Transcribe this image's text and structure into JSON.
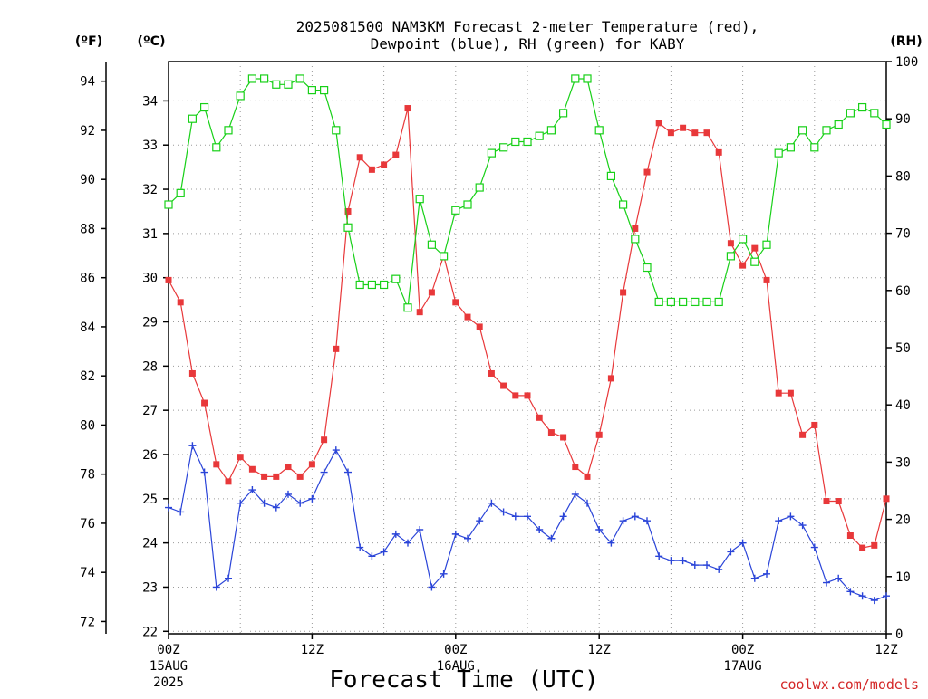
{
  "chart_data": {
    "type": "line",
    "title_line1": "2025081500 NAM3KM Forecast 2-meter Temperature (red),",
    "title_line2": "Dewpoint (blue), RH (green) for KABY",
    "xlabel": "Forecast Time (UTC)",
    "credit": "coolwx.com/models",
    "unit_f": "(ºF)",
    "unit_c": "(ºC)",
    "unit_rh": "(RH)",
    "x_range_hours": [
      0,
      60
    ],
    "x_ticks": [
      {
        "hour": 0,
        "label": "00Z",
        "sub1": "15AUG",
        "sub2": "2025"
      },
      {
        "hour": 12,
        "label": "12Z",
        "sub1": "",
        "sub2": ""
      },
      {
        "hour": 24,
        "label": "00Z",
        "sub1": "16AUG",
        "sub2": ""
      },
      {
        "hour": 36,
        "label": "12Z",
        "sub1": "",
        "sub2": ""
      },
      {
        "hour": 48,
        "label": "00Z",
        "sub1": "17AUG",
        "sub2": ""
      },
      {
        "hour": 60,
        "label": "12Z",
        "sub1": "",
        "sub2": ""
      }
    ],
    "f_ticks": [
      "72",
      "74",
      "76",
      "78",
      "80",
      "82",
      "84",
      "86",
      "88",
      "90",
      "92",
      "94"
    ],
    "c_ticks": [
      "22",
      "23",
      "24",
      "25",
      "26",
      "27",
      "28",
      "29",
      "30",
      "31",
      "32",
      "33",
      "34"
    ],
    "rh_ticks": [
      "0",
      "10",
      "20",
      "30",
      "40",
      "50",
      "60",
      "70",
      "80",
      "90",
      "100"
    ],
    "f_range": [
      71.5,
      94.8
    ],
    "rh_range": [
      0,
      100
    ],
    "grid": true,
    "colors": {
      "temperature": "#e8383a",
      "dewpoint": "#2a44d8",
      "rh": "#18d018",
      "grid": "#9a9a9a",
      "credit": "#d42828"
    },
    "series": [
      {
        "key": "temperature",
        "marker": "filled-square",
        "x": [
          0,
          1,
          2,
          3,
          4,
          5,
          6,
          7,
          8,
          9,
          10,
          11,
          12,
          13,
          14,
          15,
          16,
          17,
          18,
          19,
          20,
          21,
          22,
          23,
          24,
          25,
          26,
          27,
          28,
          29,
          30,
          31,
          32,
          33,
          34,
          35,
          36,
          37,
          38,
          39,
          40,
          41,
          42,
          43,
          44,
          45,
          46,
          47,
          48,
          49,
          50,
          51,
          52,
          53,
          54,
          55,
          56,
          57,
          58,
          59,
          60
        ],
        "values": [
          85.9,
          85.0,
          82.1,
          80.9,
          78.4,
          77.7,
          78.7,
          78.2,
          77.9,
          77.9,
          78.3,
          77.9,
          78.4,
          79.4,
          83.1,
          88.7,
          90.9,
          90.4,
          90.6,
          91.0,
          92.9,
          84.6,
          85.4,
          86.9,
          85.0,
          84.4,
          84.0,
          82.1,
          81.6,
          81.2,
          81.2,
          80.3,
          79.7,
          79.5,
          78.3,
          77.9,
          79.6,
          81.9,
          85.4,
          88.0,
          90.3,
          92.3,
          91.9,
          92.1,
          91.9,
          91.9,
          91.1,
          87.4,
          86.5,
          87.2,
          85.9,
          81.3,
          81.3,
          79.6,
          80.0,
          76.9,
          76.9,
          75.5,
          75.0,
          75.1,
          77.0
        ]
      },
      {
        "key": "dewpoint",
        "marker": "plus",
        "x": [
          0,
          1,
          2,
          3,
          4,
          5,
          6,
          7,
          8,
          9,
          10,
          11,
          12,
          13,
          14,
          15,
          16,
          17,
          18,
          19,
          20,
          21,
          22,
          23,
          24,
          25,
          26,
          27,
          28,
          29,
          30,
          31,
          32,
          33,
          34,
          35,
          36,
          37,
          38,
          39,
          40,
          41,
          42,
          43,
          44,
          45,
          46,
          47,
          48,
          49,
          50,
          51,
          52,
          53,
          54,
          55,
          56,
          57,
          58,
          59,
          60
        ],
        "values": [
          24.8,
          24.7,
          26.2,
          25.6,
          23.0,
          23.2,
          24.9,
          25.2,
          24.9,
          24.8,
          25.1,
          24.9,
          25.0,
          25.6,
          26.1,
          25.6,
          23.9,
          23.7,
          23.8,
          24.2,
          24.0,
          24.3,
          23.0,
          23.3,
          24.2,
          24.1,
          24.5,
          24.9,
          24.7,
          24.6,
          24.6,
          24.3,
          24.1,
          24.6,
          25.1,
          24.9,
          24.3,
          24.0,
          24.5,
          24.6,
          24.5,
          23.7,
          23.6,
          23.6,
          23.5,
          23.5,
          23.4,
          23.8,
          24.0,
          23.2,
          23.3,
          24.5,
          24.6,
          24.4,
          23.9,
          23.1,
          23.2,
          22.9,
          22.8,
          22.7,
          22.8
        ]
      },
      {
        "key": "rh",
        "marker": "open-square",
        "x": [
          0,
          1,
          2,
          3,
          4,
          5,
          6,
          7,
          8,
          9,
          10,
          11,
          12,
          13,
          14,
          15,
          16,
          17,
          18,
          19,
          20,
          21,
          22,
          23,
          24,
          25,
          26,
          27,
          28,
          29,
          30,
          31,
          32,
          33,
          34,
          35,
          36,
          37,
          38,
          39,
          40,
          41,
          42,
          43,
          44,
          45,
          46,
          47,
          48,
          49,
          50,
          51,
          52,
          53,
          54,
          55,
          56,
          57,
          58,
          59,
          60
        ],
        "values": [
          75,
          77,
          90,
          92,
          85,
          88,
          94,
          97,
          97,
          96,
          96,
          97,
          95,
          95,
          88,
          71,
          61,
          61,
          61,
          62,
          57,
          76,
          68,
          66,
          74,
          75,
          78,
          84,
          85,
          86,
          86,
          87,
          88,
          91,
          97,
          97,
          88,
          80,
          75,
          69,
          64,
          58,
          58,
          58,
          58,
          58,
          58,
          66,
          69,
          65,
          68,
          84,
          85,
          88,
          85,
          88,
          89,
          91,
          92,
          91,
          89
        ]
      }
    ]
  }
}
